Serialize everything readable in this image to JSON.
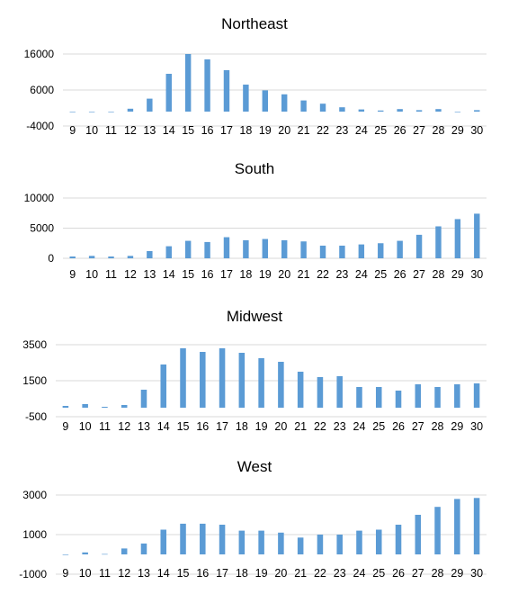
{
  "chart_data": [
    {
      "type": "bar",
      "title": "Northeast",
      "categories": [
        "9",
        "10",
        "11",
        "12",
        "13",
        "14",
        "15",
        "16",
        "17",
        "18",
        "19",
        "20",
        "21",
        "22",
        "23",
        "24",
        "25",
        "26",
        "27",
        "28",
        "29",
        "30"
      ],
      "values": [
        0,
        0,
        0,
        800,
        3600,
        10500,
        16000,
        14500,
        11500,
        7500,
        5900,
        4800,
        3100,
        2200,
        1200,
        600,
        300,
        700,
        400,
        700,
        0,
        400
      ],
      "ylim": [
        -4000,
        16000
      ],
      "yticks": [
        -4000,
        6000,
        16000
      ],
      "grid": true,
      "color": "#5b9bd5"
    },
    {
      "type": "bar",
      "title": "South",
      "categories": [
        "9",
        "10",
        "11",
        "12",
        "13",
        "14",
        "15",
        "16",
        "17",
        "18",
        "19",
        "20",
        "21",
        "22",
        "23",
        "24",
        "25",
        "26",
        "27",
        "28",
        "29",
        "30"
      ],
      "values": [
        300,
        400,
        300,
        400,
        1200,
        2000,
        2900,
        2700,
        3500,
        3000,
        3200,
        3000,
        2800,
        2100,
        2100,
        2300,
        2500,
        2900,
        3900,
        5300,
        6500,
        7400
      ],
      "ylim": [
        0,
        10000
      ],
      "yticks": [
        0,
        5000,
        10000
      ],
      "grid": true,
      "color": "#5b9bd5"
    },
    {
      "type": "bar",
      "title": "Midwest",
      "categories": [
        "9",
        "10",
        "11",
        "12",
        "13",
        "14",
        "15",
        "16",
        "17",
        "18",
        "19",
        "20",
        "21",
        "22",
        "23",
        "24",
        "25",
        "26",
        "27",
        "28",
        "29",
        "30"
      ],
      "values": [
        100,
        200,
        50,
        150,
        1000,
        2400,
        3300,
        3100,
        3300,
        3050,
        2750,
        2550,
        2000,
        1700,
        1750,
        1150,
        1150,
        950,
        1300,
        1150,
        1300,
        1350
      ],
      "ylim": [
        -500,
        3500
      ],
      "yticks": [
        -500,
        1500,
        3500
      ],
      "grid": true,
      "color": "#5b9bd5"
    },
    {
      "type": "bar",
      "title": "West",
      "categories": [
        "9",
        "10",
        "11",
        "12",
        "13",
        "14",
        "15",
        "16",
        "17",
        "18",
        "19",
        "20",
        "21",
        "22",
        "23",
        "24",
        "25",
        "26",
        "27",
        "28",
        "29",
        "30"
      ],
      "values": [
        0,
        100,
        20,
        300,
        550,
        1250,
        1550,
        1550,
        1500,
        1200,
        1200,
        1100,
        850,
        1000,
        1000,
        1200,
        1250,
        1500,
        2000,
        2400,
        2800,
        2850
      ],
      "ylim": [
        -1000,
        3000
      ],
      "yticks": [
        -1000,
        1000,
        3000
      ],
      "grid": true,
      "color": "#5b9bd5"
    }
  ]
}
